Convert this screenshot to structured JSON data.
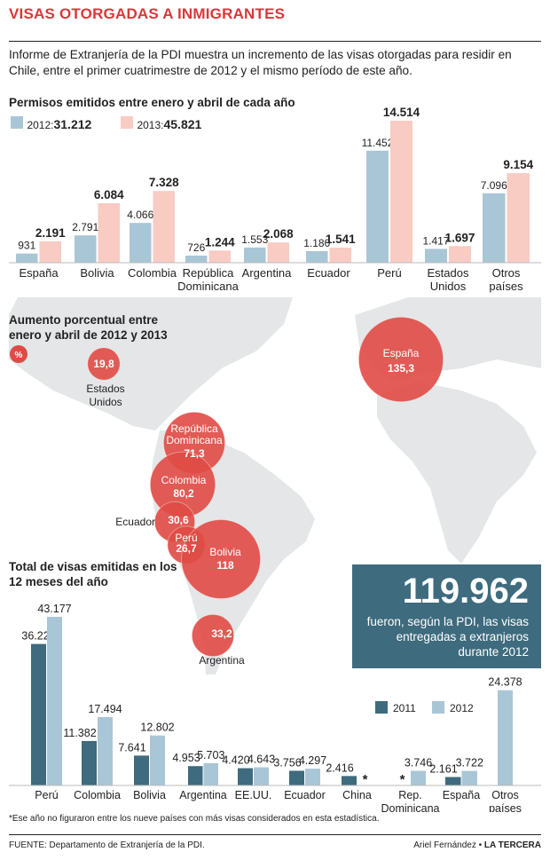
{
  "title": "VISAS OTORGADAS A INMIGRANTES",
  "intro": "Informe de Extranjería de la PDI muestra un incremento de las visas otorgadas para residir en Chile, entre el primer cuatrimestre de 2012 y el mismo período de este año.",
  "footnote": "*Ese año no figuraron entre los nueve países con más visas considerados en esta estadística.",
  "source": "FUENTE: Departamento de Extranjería de la PDI.",
  "credit_author": "Ariel Fernández",
  "credit_separator": " • ",
  "credit_paper": "LA TERCERA",
  "infobox": {
    "number": "119.962",
    "text": "fueron, según la PDI, las visas entregadas a extranjeros durante 2012"
  },
  "colors": {
    "accent": "#d8383a",
    "bar2012_top": "#a9c6d6",
    "bar2013_top": "#f8cbc3",
    "bar2011_bottom": "#3e6b7e",
    "bar2012_bottom": "#a9c6d6",
    "bubble": "#e04a45",
    "map": "#e4e6e8"
  },
  "chart_data": [
    {
      "type": "bar",
      "title": "Permisos emitidos entre enero y abril de cada año",
      "legend": [
        {
          "label": "2012:",
          "total": "31.212"
        },
        {
          "label": "2013:",
          "total": "45.821"
        }
      ],
      "categories": [
        "España",
        "Bolivia",
        "Colombia",
        "República Dominicana",
        "Argentina",
        "Ecuador",
        "Perú",
        "Estados Unidos",
        "Otros países"
      ],
      "category_lines": [
        [
          "España"
        ],
        [
          "Bolivia"
        ],
        [
          "Colombia"
        ],
        [
          "República",
          "Dominicana"
        ],
        [
          "Argentina"
        ],
        [
          "Ecuador"
        ],
        [
          "Perú"
        ],
        [
          "Estados",
          "Unidos"
        ],
        [
          "Otros",
          "países"
        ]
      ],
      "series": [
        {
          "name": "2012",
          "values": [
            931,
            2791,
            4066,
            726,
            1553,
            1180,
            11452,
            1417,
            7096
          ],
          "labels": [
            "931",
            "2.791",
            "4.066",
            "726",
            "1.553",
            "1.180",
            "11.452",
            "1.417",
            "7.096"
          ]
        },
        {
          "name": "2013",
          "values": [
            2191,
            6084,
            7328,
            1244,
            2068,
            1541,
            14514,
            1697,
            9154
          ],
          "labels": [
            "2.191",
            "6.084",
            "7.328",
            "1.244",
            "2.068",
            "1.541",
            "14.514",
            "1.697",
            "9.154"
          ]
        }
      ]
    },
    {
      "type": "bubble-map",
      "title": "Aumento porcentual entre enero y abril de 2012 y 2013",
      "unit": "%",
      "points": [
        {
          "name": "Estados Unidos",
          "lines": [
            "Estados",
            "Unidos"
          ],
          "value": 19.8,
          "label": "19,8"
        },
        {
          "name": "España",
          "lines": [
            "España"
          ],
          "value": 135.3,
          "label": "135,3"
        },
        {
          "name": "República Dominicana",
          "lines": [
            "República",
            "Dominicana"
          ],
          "value": 71.3,
          "label": "71,3"
        },
        {
          "name": "Colombia",
          "lines": [
            "Colombia"
          ],
          "value": 80.2,
          "label": "80,2"
        },
        {
          "name": "Ecuador",
          "lines": [
            "Ecuador"
          ],
          "value": 30.6,
          "label": "30,6"
        },
        {
          "name": "Perú",
          "lines": [
            "Perú"
          ],
          "value": 26.7,
          "label": "26,7"
        },
        {
          "name": "Bolivia",
          "lines": [
            "Bolivia"
          ],
          "value": 118,
          "label": "118"
        },
        {
          "name": "Argentina",
          "lines": [
            "Argentina"
          ],
          "value": 33.2,
          "label": "33,2"
        }
      ]
    },
    {
      "type": "bar",
      "title": "Total de visas emitidas en los 12 meses del año",
      "categories": [
        "Perú",
        "Colombia",
        "Bolivia",
        "Argentina",
        "EE.UU.",
        "Ecuador",
        "China",
        "Rep. Dominicana",
        "España",
        "Otros países"
      ],
      "category_lines": [
        [
          "Perú"
        ],
        [
          "Colombia"
        ],
        [
          "Bolivia"
        ],
        [
          "Argentina"
        ],
        [
          "EE.UU."
        ],
        [
          "Ecuador"
        ],
        [
          "China"
        ],
        [
          "Rep.",
          "Dominicana"
        ],
        [
          "España"
        ],
        [
          "Otros",
          "países"
        ]
      ],
      "series": [
        {
          "name": "2011",
          "values": [
            36227,
            11382,
            7641,
            4953,
            4420,
            3756,
            2416,
            null,
            2161,
            null
          ],
          "labels": [
            "36.227",
            "11.382",
            "7.641",
            "4.953",
            "4.420",
            "3.756",
            "2.416",
            "*",
            "2.161",
            ""
          ]
        },
        {
          "name": "2012",
          "values": [
            43177,
            17494,
            12802,
            5703,
            4643,
            4297,
            null,
            3746,
            3722,
            24378
          ],
          "labels": [
            "43.177",
            "17.494",
            "12.802",
            "5.703",
            "4.643",
            "4.297",
            "*",
            "3.746",
            "3.722",
            "24.378"
          ]
        }
      ]
    }
  ]
}
